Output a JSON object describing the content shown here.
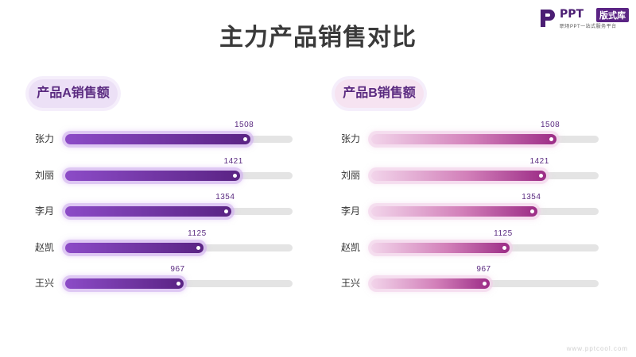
{
  "slide": {
    "title": "主力产品销售对比"
  },
  "logo": {
    "word": "PPT",
    "badge": "版式库",
    "tagline": "职场PPT一站式服务平台"
  },
  "watermark": "www.pptcool.com",
  "colors": {
    "series_a": "#6a2d9c",
    "series_b": "#a8358f",
    "track": "#e4e4e4"
  },
  "chart_data": [
    {
      "type": "bar",
      "orientation": "horizontal",
      "title": "产品A销售额",
      "categories": [
        "张力",
        "刘丽",
        "李月",
        "赵凯",
        "王兴"
      ],
      "values": [
        1508,
        1421,
        1354,
        1125,
        967
      ],
      "xlim": [
        0,
        1850
      ]
    },
    {
      "type": "bar",
      "orientation": "horizontal",
      "title": "产品B销售额",
      "categories": [
        "张力",
        "刘丽",
        "李月",
        "赵凯",
        "王兴"
      ],
      "values": [
        1508,
        1421,
        1354,
        1125,
        967
      ],
      "xlim": [
        0,
        1850
      ]
    }
  ]
}
